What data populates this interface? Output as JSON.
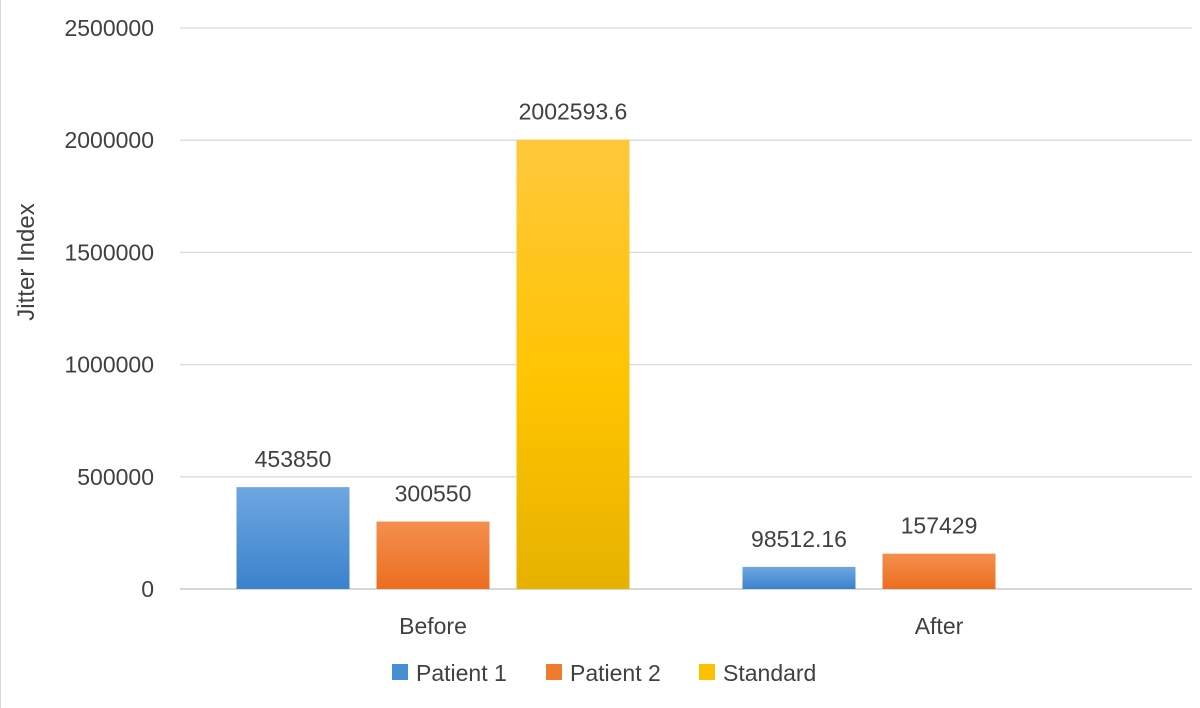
{
  "chart_data": {
    "type": "bar",
    "categories": [
      "Before",
      "After"
    ],
    "series": [
      {
        "name": "Patient 1",
        "values": [
          453850,
          98512.16
        ],
        "labels": [
          "453850",
          "98512.16"
        ],
        "color": "#4a8fd6"
      },
      {
        "name": "Patient 2",
        "values": [
          300550,
          157429
        ],
        "labels": [
          "300550",
          "157429"
        ],
        "color": "#f07a2e"
      },
      {
        "name": "Standard",
        "values": [
          2002593.6,
          null
        ],
        "labels": [
          "2002593.6",
          ""
        ],
        "color": "#ffc000"
      }
    ],
    "title": "",
    "xlabel": "",
    "ylabel": "Jitter Index",
    "ylim": [
      0,
      2500000
    ],
    "yticks": [
      "0",
      "500000",
      "1000000",
      "1500000",
      "2000000",
      "2500000"
    ],
    "grid": true,
    "legend_position": "bottom"
  }
}
